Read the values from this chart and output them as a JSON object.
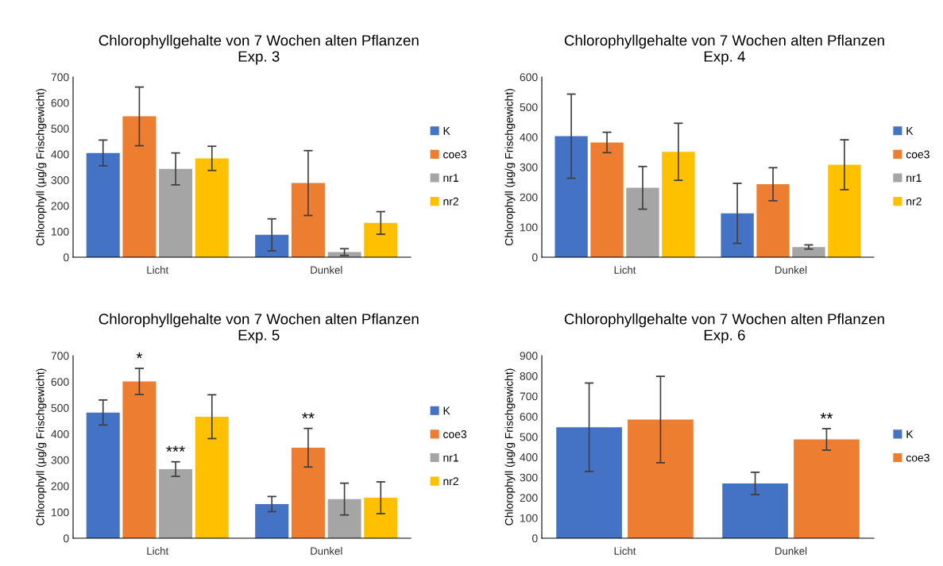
{
  "chart_data": [
    {
      "type": "bar",
      "title": "Chlorophyllgehalte von 7 Wochen alten Pflanzen\nExp. 3",
      "ylabel": "Chlorophyll (µg/g Frischgewicht)",
      "categories": [
        "Licht",
        "Dunkel"
      ],
      "ylim": [
        0,
        700
      ],
      "yticks": [
        0,
        100,
        200,
        300,
        400,
        500,
        600,
        700
      ],
      "grid": false,
      "legend": "right",
      "series": [
        {
          "name": "K",
          "color": "#4472c4",
          "values": [
            405,
            87
          ],
          "errors": [
            50,
            62
          ]
        },
        {
          "name": "coe3",
          "color": "#ed7d31",
          "values": [
            547,
            288
          ],
          "errors": [
            114,
            126
          ]
        },
        {
          "name": "nr1",
          "color": "#a5a5a5",
          "values": [
            343,
            20
          ],
          "errors": [
            62,
            13
          ]
        },
        {
          "name": "nr2",
          "color": "#ffc000",
          "values": [
            384,
            133
          ],
          "errors": [
            47,
            44
          ]
        }
      ]
    },
    {
      "type": "bar",
      "title": "Chlorophyllgehalte von 7 Wochen alten Pflanzen\nExp. 4",
      "ylabel": "Chlorophyll (µg/g Frischgewicht)",
      "categories": [
        "Licht",
        "Dunkel"
      ],
      "ylim": [
        0,
        600
      ],
      "yticks": [
        0,
        100,
        200,
        300,
        400,
        500,
        600
      ],
      "grid": false,
      "legend": "right",
      "series": [
        {
          "name": "K",
          "color": "#4472c4",
          "values": [
            403,
            146
          ],
          "errors": [
            140,
            100
          ]
        },
        {
          "name": "coe3",
          "color": "#ed7d31",
          "values": [
            382,
            243
          ],
          "errors": [
            34,
            55
          ]
        },
        {
          "name": "nr1",
          "color": "#a5a5a5",
          "values": [
            231,
            34
          ],
          "errors": [
            71,
            7
          ]
        },
        {
          "name": "nr2",
          "color": "#ffc000",
          "values": [
            351,
            308
          ],
          "errors": [
            95,
            83
          ]
        }
      ]
    },
    {
      "type": "bar",
      "title": "Chlorophyllgehalte von 7 Wochen alten Pflanzen\nExp. 5",
      "ylabel": "Chlorophyll (µg/g Frischgewicht)",
      "categories": [
        "Licht",
        "Dunkel"
      ],
      "ylim": [
        0,
        700
      ],
      "yticks": [
        0,
        100,
        200,
        300,
        400,
        500,
        600,
        700
      ],
      "grid": false,
      "legend": "right",
      "annotations": [
        {
          "text": "*",
          "x": "Licht",
          "y": 601
        },
        {
          "text": "***",
          "x": "Licht",
          "y": 265
        },
        {
          "text": "**",
          "x": "Dunkel",
          "y": 347
        }
      ],
      "series": [
        {
          "name": "K",
          "color": "#4472c4",
          "values": [
            482,
            131
          ],
          "errors": [
            48,
            29
          ]
        },
        {
          "name": "coe3",
          "color": "#ed7d31",
          "values": [
            601,
            347
          ],
          "errors": [
            50,
            74
          ]
        },
        {
          "name": "nr1",
          "color": "#a5a5a5",
          "values": [
            265,
            150
          ],
          "errors": [
            28,
            61
          ]
        },
        {
          "name": "nr2",
          "color": "#ffc000",
          "values": [
            466,
            155
          ],
          "errors": [
            84,
            61
          ]
        }
      ]
    },
    {
      "type": "bar",
      "title": "Chlorophyllgehalte von 7 Wochen alten Pflanzen\nExp. 6",
      "ylabel": "Chlorophyll (µg/g Frischgewicht)",
      "categories": [
        "Licht",
        "Dunkel"
      ],
      "ylim": [
        0,
        900
      ],
      "yticks": [
        0,
        100,
        200,
        300,
        400,
        500,
        600,
        700,
        800,
        900
      ],
      "grid": false,
      "legend": "right",
      "annotations": [
        {
          "text": "**",
          "x": "Dunkel",
          "y": 487
        }
      ],
      "series": [
        {
          "name": "K",
          "color": "#4472c4",
          "values": [
            547,
            270
          ],
          "errors": [
            218,
            55
          ]
        },
        {
          "name": "coe3",
          "color": "#ed7d31",
          "values": [
            585,
            487
          ],
          "errors": [
            213,
            53
          ]
        }
      ]
    }
  ]
}
